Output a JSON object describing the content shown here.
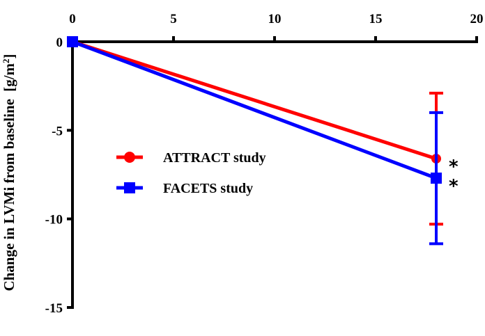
{
  "chart_data": {
    "type": "line",
    "ylabel": "Change in LVMi from baseline",
    "ylabel_unit_base": "[g/m",
    "ylabel_unit_sup": "2",
    "ylabel_unit_end": "]",
    "xlim": [
      0,
      20
    ],
    "ylim": [
      -15,
      0
    ],
    "x_ticks": [
      "0",
      "5",
      "10",
      "15",
      "20"
    ],
    "y_ticks": [
      "0",
      "-5",
      "-10",
      "-15"
    ],
    "x_axis_position": "top",
    "grid": false,
    "legend_position": "center-left",
    "series": [
      {
        "name": "ATTRACT study",
        "color": "#ff0000",
        "marker": "circle",
        "x": [
          0,
          18
        ],
        "y": [
          0,
          -6.6
        ],
        "error_low": [
          0,
          -10.3
        ],
        "error_high": [
          0,
          -2.9
        ],
        "annotation": "*"
      },
      {
        "name": "FACETS study",
        "color": "#0000ff",
        "marker": "square",
        "x": [
          0,
          18
        ],
        "y": [
          0,
          -7.7
        ],
        "error_low": [
          0,
          -11.4
        ],
        "error_high": [
          0,
          -4.0
        ],
        "annotation": "*"
      }
    ]
  }
}
